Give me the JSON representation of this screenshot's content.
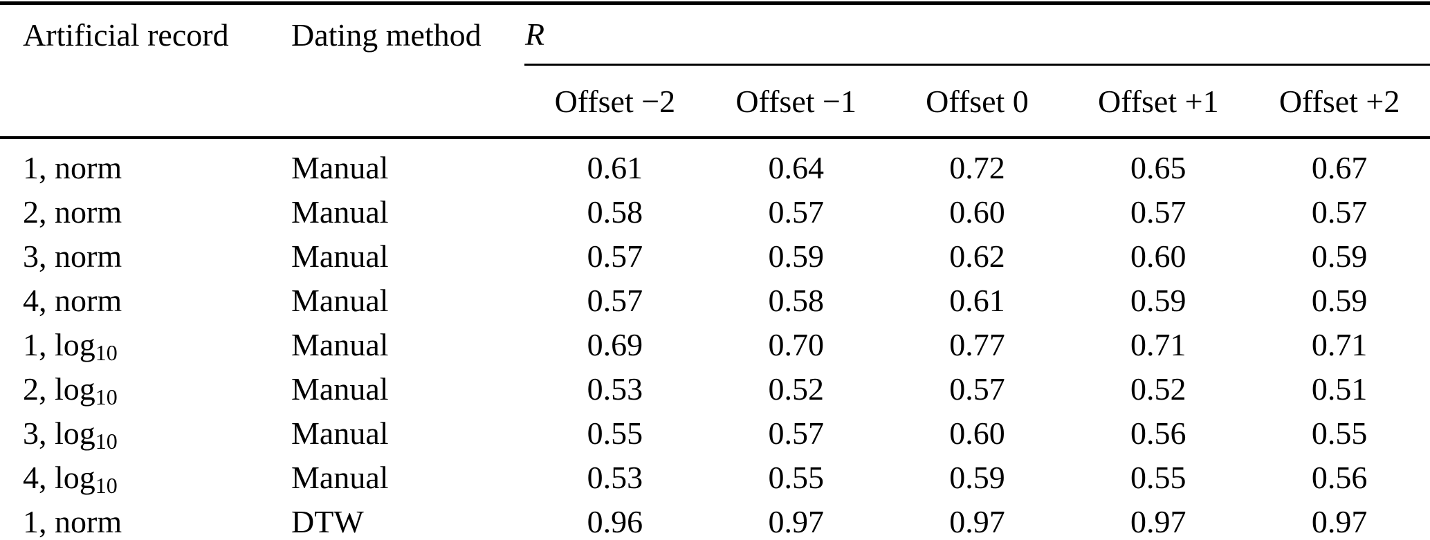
{
  "page": {
    "background_color": "#ffffff",
    "text_color": "#000000"
  },
  "table": {
    "headers": {
      "artificial_record": "Artificial record",
      "dating_method": "Dating method",
      "group": "R"
    },
    "offset_headers": [
      "Offset −2",
      "Offset −1",
      "Offset 0",
      "Offset +1",
      "Offset +2"
    ],
    "rows": [
      {
        "record": "1, norm",
        "record_sub": "",
        "method": "Manual",
        "values": [
          "0.61",
          "0.64",
          "0.72",
          "0.65",
          "0.67"
        ]
      },
      {
        "record": "2, norm",
        "record_sub": "",
        "method": "Manual",
        "values": [
          "0.58",
          "0.57",
          "0.60",
          "0.57",
          "0.57"
        ]
      },
      {
        "record": "3, norm",
        "record_sub": "",
        "method": "Manual",
        "values": [
          "0.57",
          "0.59",
          "0.62",
          "0.60",
          "0.59"
        ]
      },
      {
        "record": "4, norm",
        "record_sub": "",
        "method": "Manual",
        "values": [
          "0.57",
          "0.58",
          "0.61",
          "0.59",
          "0.59"
        ]
      },
      {
        "record": "1, log",
        "record_sub": "10",
        "method": "Manual",
        "values": [
          "0.69",
          "0.70",
          "0.77",
          "0.71",
          "0.71"
        ]
      },
      {
        "record": "2, log",
        "record_sub": "10",
        "method": "Manual",
        "values": [
          "0.53",
          "0.52",
          "0.57",
          "0.52",
          "0.51"
        ]
      },
      {
        "record": "3, log",
        "record_sub": "10",
        "method": "Manual",
        "values": [
          "0.55",
          "0.57",
          "0.60",
          "0.56",
          "0.55"
        ]
      },
      {
        "record": "4, log",
        "record_sub": "10",
        "method": "Manual",
        "values": [
          "0.53",
          "0.55",
          "0.59",
          "0.55",
          "0.56"
        ]
      },
      {
        "record": "1, norm",
        "record_sub": "",
        "method": "DTW",
        "values": [
          "0.96",
          "0.97",
          "0.97",
          "0.97",
          "0.97"
        ]
      }
    ]
  }
}
